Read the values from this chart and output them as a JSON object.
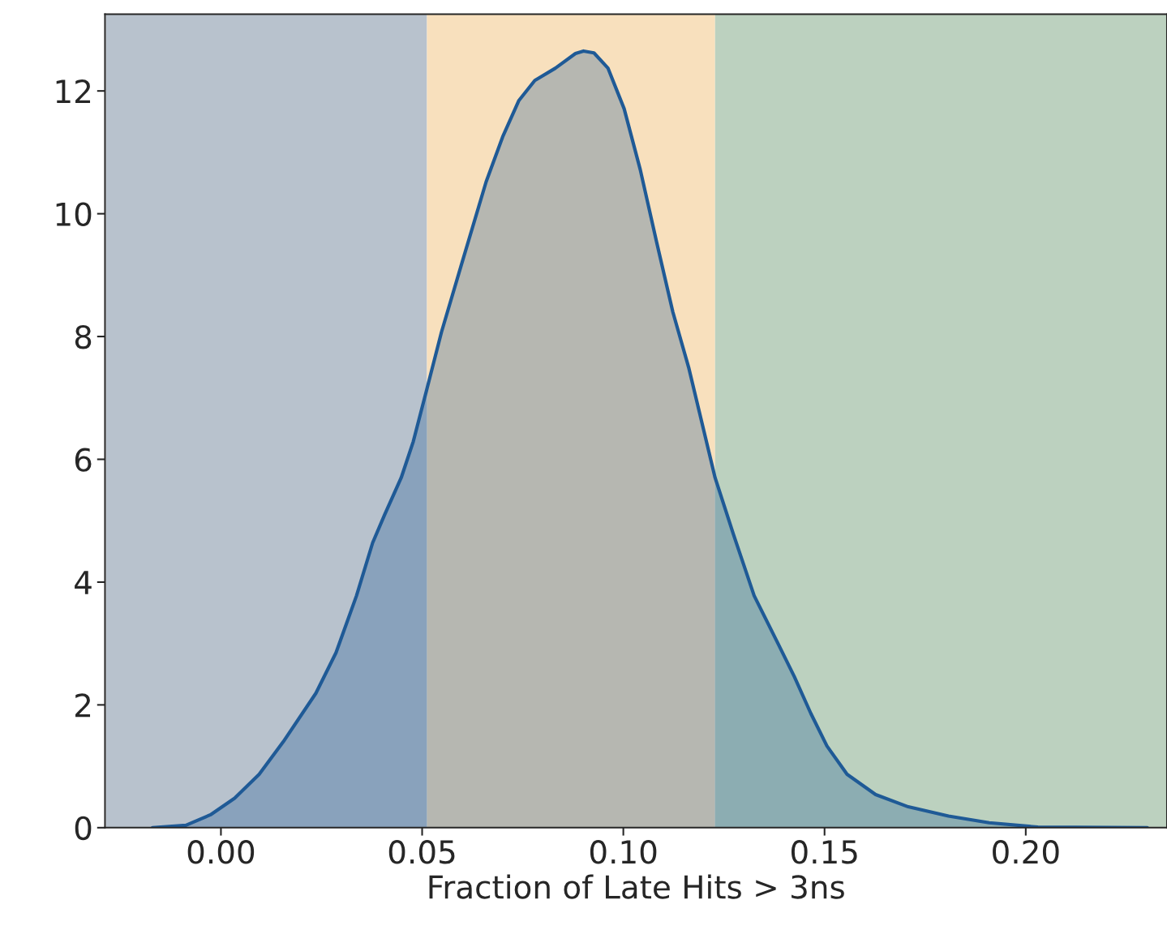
{
  "chart_data": {
    "type": "area",
    "xlabel": "Fraction of Late Hits > 3ns",
    "x": [
      -0.017,
      -0.0087,
      -0.0026,
      0.0034,
      0.0095,
      0.0155,
      0.0236,
      0.0286,
      0.0337,
      0.0377,
      0.0407,
      0.0448,
      0.0478,
      0.0512,
      0.0548,
      0.0599,
      0.0659,
      0.07,
      0.074,
      0.078,
      0.0831,
      0.0881,
      0.0901,
      0.0927,
      0.0962,
      0.1002,
      0.1042,
      0.1083,
      0.1123,
      0.1163,
      0.1228,
      0.1274,
      0.1325,
      0.1385,
      0.1425,
      0.1466,
      0.1506,
      0.1556,
      0.1627,
      0.1708,
      0.1808,
      0.1909,
      0.203,
      0.2302
    ],
    "series": [
      {
        "color": "#1f5a96",
        "values": [
          0,
          0.04,
          0.21,
          0.48,
          0.87,
          1.4,
          2.19,
          2.85,
          3.78,
          4.64,
          5.1,
          5.7,
          6.29,
          7.15,
          8.07,
          9.2,
          10.52,
          11.25,
          11.84,
          12.17,
          12.37,
          12.61,
          12.65,
          12.62,
          12.37,
          11.71,
          10.72,
          9.53,
          8.4,
          7.48,
          5.7,
          4.77,
          3.78,
          2.99,
          2.46,
          1.86,
          1.33,
          0.87,
          0.54,
          0.34,
          0.19,
          0.08,
          0.01,
          0
        ]
      }
    ],
    "xlim": [
      -0.0288,
      0.2351
    ],
    "ylim": [
      0,
      13.25
    ],
    "xticks": [
      {
        "value": 0,
        "label": "0.00"
      },
      {
        "value": 0.05,
        "label": "0.05"
      },
      {
        "value": 0.1,
        "label": "0.10"
      },
      {
        "value": 0.15,
        "label": "0.15"
      },
      {
        "value": 0.2,
        "label": "0.20"
      }
    ],
    "yticks": [
      0,
      2,
      4,
      6,
      8,
      10,
      12
    ],
    "bands": [
      {
        "axis": "x",
        "from": -0.0285,
        "to": 0.0512,
        "color": "#b8c2cd"
      },
      {
        "axis": "x",
        "from": 0.0512,
        "to": 0.1228,
        "color": "#f8e0bd"
      },
      {
        "axis": "x",
        "from": 0.1228,
        "to": 0.2351,
        "color": "#bcd1bf"
      }
    ],
    "grid": false
  }
}
